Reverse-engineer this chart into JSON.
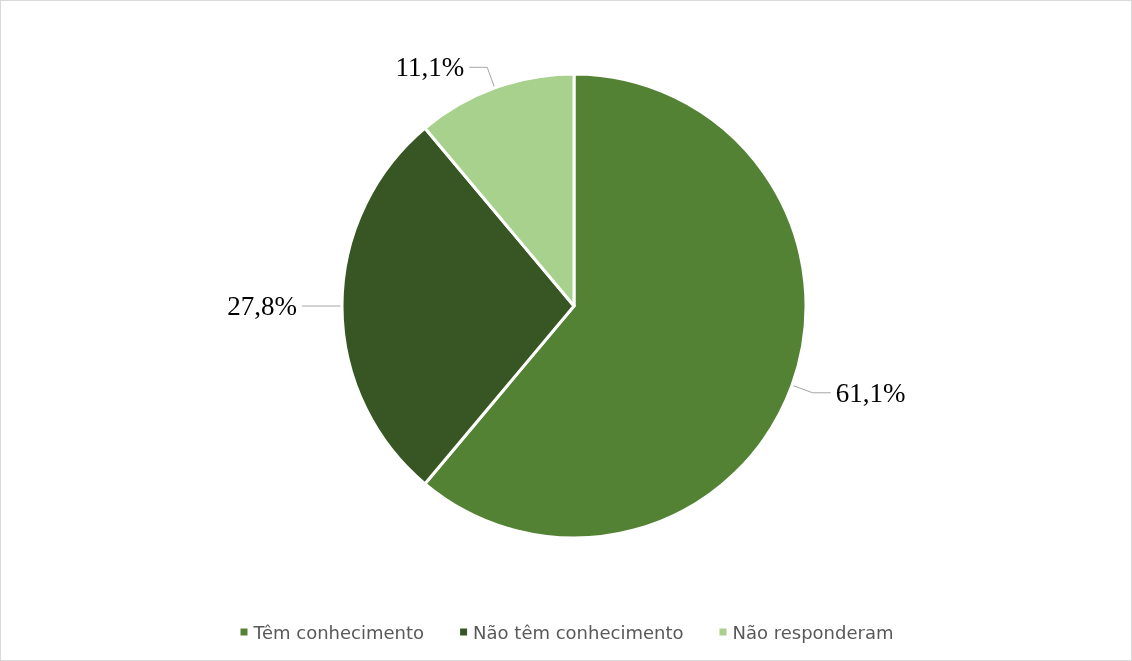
{
  "chart_data": {
    "type": "pie",
    "categories": [
      "Têm conhecimento",
      "Não têm conhecimento",
      "Não responderam"
    ],
    "values": [
      61.1,
      27.8,
      11.1
    ],
    "colors": [
      "#548235",
      "#375623",
      "#a9d18e"
    ],
    "value_labels": [
      "61,1%",
      "27,8%",
      "11,1%"
    ],
    "legend": "bottom"
  }
}
